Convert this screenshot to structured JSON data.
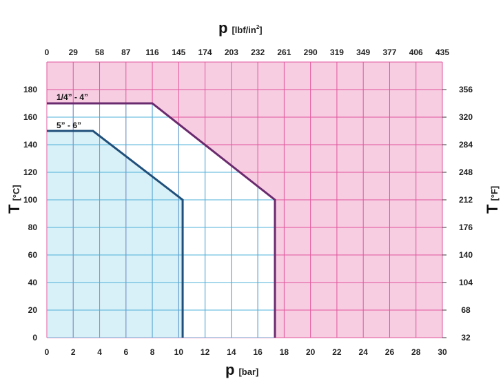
{
  "chart_data": {
    "type": "area",
    "x_axis_bottom": {
      "symbol": "p",
      "unit": "[bar]",
      "range": [
        0,
        30
      ],
      "ticks": [
        "0",
        "2",
        "4",
        "6",
        "8",
        "10",
        "12",
        "14",
        "16",
        "18",
        "20",
        "22",
        "24",
        "26",
        "28",
        "30"
      ]
    },
    "x_axis_top": {
      "symbol": "p",
      "unit_base": "[lbf/in",
      "unit_sup": "2",
      "unit_end": "]",
      "ticks": [
        "0",
        "29",
        "58",
        "87",
        "116",
        "145",
        "174",
        "203",
        "232",
        "261",
        "290",
        "319",
        "349",
        "377",
        "406",
        "435"
      ]
    },
    "y_axis_left": {
      "symbol": "T",
      "unit": "[°C]",
      "range": [
        0,
        200
      ],
      "ticks": [
        "0",
        "20",
        "40",
        "60",
        "80",
        "100",
        "120",
        "140",
        "160",
        "180"
      ]
    },
    "y_axis_right": {
      "symbol": "T",
      "unit": "[°F]",
      "ticks": [
        "32",
        "68",
        "104",
        "140",
        "176",
        "212",
        "248",
        "284",
        "320",
        "356"
      ]
    },
    "grid": true,
    "series": [
      {
        "name": "1/4” - 4”",
        "color": "#6a2a6e",
        "points": [
          [
            0,
            170
          ],
          [
            8,
            170
          ],
          [
            17.3,
            100
          ],
          [
            17.3,
            0
          ]
        ]
      },
      {
        "name": "5” - 6”",
        "color": "#1f4f7a",
        "points": [
          [
            0,
            150
          ],
          [
            3.5,
            150
          ],
          [
            10.3,
            100
          ],
          [
            10.3,
            0
          ]
        ]
      }
    ],
    "colors": {
      "background_region": "#f7cde2",
      "grid_background": "#e2559c",
      "grid_inner": "#4fb0d9",
      "inner_fill": "#d8f1f8",
      "mid_fill": "#ffffff"
    }
  }
}
